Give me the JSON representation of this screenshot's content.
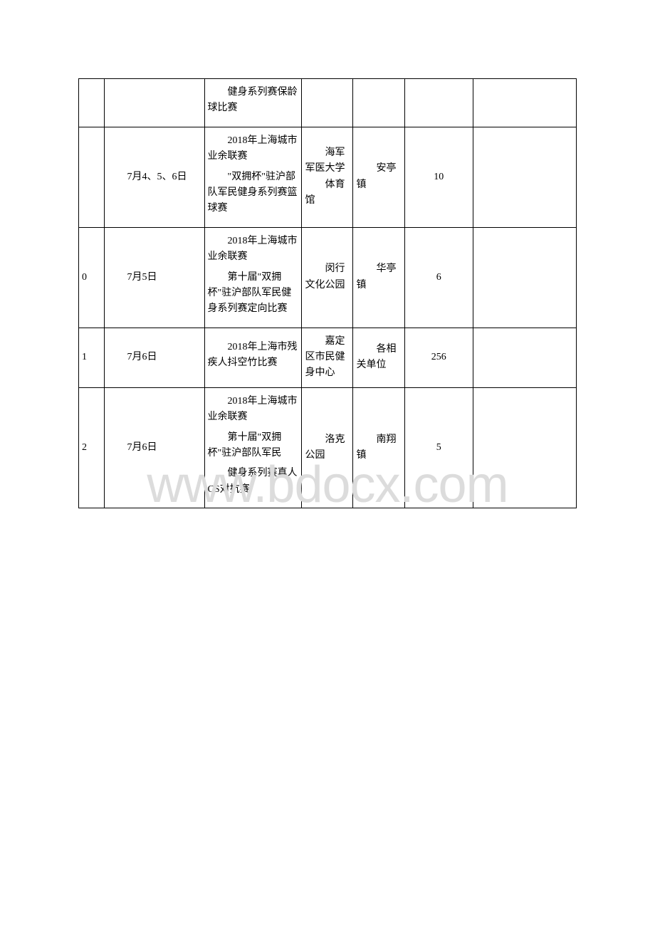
{
  "watermark": "www.bdocx.com",
  "rows": [
    {
      "idx": "",
      "date": "",
      "event_parts": [
        "健身系列赛保龄球比赛"
      ],
      "venue": "",
      "unit": "",
      "count": "",
      "note": ""
    },
    {
      "idx": "",
      "date": "7月4、5、6日",
      "event_parts": [
        "2018年上海城市业余联赛",
        "\"双拥杯\"驻沪部队军民健身系列赛篮球赛"
      ],
      "venue": "海军军医大学",
      "venue2": "体育馆",
      "unit": "安亭镇",
      "count": "10",
      "note": ""
    },
    {
      "idx": "0",
      "date": "7月5日",
      "event_parts": [
        "2018年上海城市业余联赛",
        "第十届\"双拥杯\"驻沪部队军民健身系列赛定向比赛"
      ],
      "venue": "闵行文化公园",
      "unit": "华亭镇",
      "count": "6",
      "note": ""
    },
    {
      "idx": "1",
      "date": "7月6日",
      "event_parts": [
        "2018年上海市残疾人抖空竹比赛"
      ],
      "venue": "嘉定区市民健身中心",
      "unit": "各相关单位",
      "count": "256",
      "note": ""
    },
    {
      "idx": "2",
      "date": "7月6日",
      "event_parts": [
        "2018年上海城市业余联赛",
        "第十届\"双拥杯\"驻沪部队军民",
        "健身系列赛真人CS对抗赛"
      ],
      "venue": "洛克公园",
      "unit": "南翔镇",
      "count": "5",
      "note": ""
    }
  ]
}
